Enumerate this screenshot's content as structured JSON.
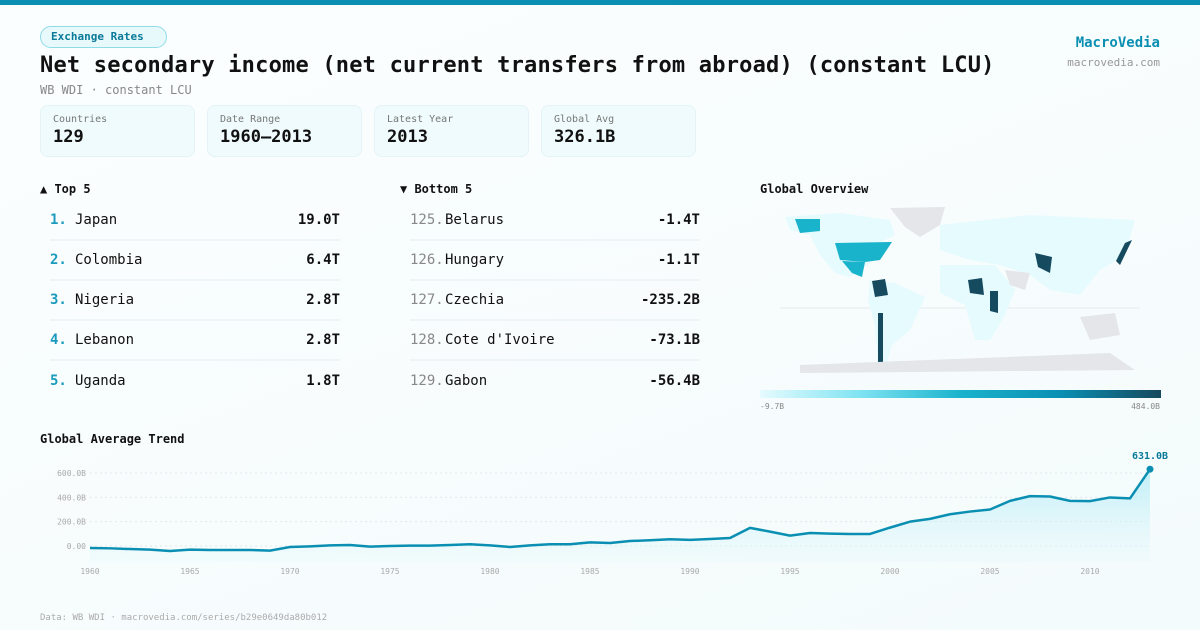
{
  "header": {
    "category": "Exchange Rates",
    "title": "Net secondary income (net current transfers from abroad) (constant LCU)",
    "subtitle": "WB WDI · constant LCU",
    "brand": "MacroVedia",
    "brand_url": "macrovedia.com"
  },
  "stats": [
    {
      "label": "Countries",
      "value": "129"
    },
    {
      "label": "Date Range",
      "value": "1960–2013"
    },
    {
      "label": "Latest Year",
      "value": "2013"
    },
    {
      "label": "Global Avg",
      "value": "326.1B"
    }
  ],
  "top5": {
    "title": "▲ Top 5",
    "items": [
      {
        "rank": "1.",
        "name": "Japan",
        "value": "19.0T"
      },
      {
        "rank": "2.",
        "name": "Colombia",
        "value": "6.4T"
      },
      {
        "rank": "3.",
        "name": "Nigeria",
        "value": "2.8T"
      },
      {
        "rank": "4.",
        "name": "Lebanon",
        "value": "2.8T"
      },
      {
        "rank": "5.",
        "name": "Uganda",
        "value": "1.8T"
      }
    ]
  },
  "bottom5": {
    "title": "▼ Bottom 5",
    "items": [
      {
        "rank": "125.",
        "name": "Belarus",
        "value": "-1.4T"
      },
      {
        "rank": "126.",
        "name": "Hungary",
        "value": "-1.1T"
      },
      {
        "rank": "127.",
        "name": "Czechia",
        "value": "-235.2B"
      },
      {
        "rank": "128.",
        "name": "Cote d'Ivoire",
        "value": "-73.1B"
      },
      {
        "rank": "129.",
        "name": "Gabon",
        "value": "-56.4B"
      }
    ]
  },
  "map": {
    "title": "Global Overview",
    "legend_min": "-9.7B",
    "legend_max": "484.0B",
    "colors": {
      "low": "#e6fbfe",
      "mid": "#1ab3cc",
      "high": "#164a5e",
      "nodata": "#e4e6ea"
    }
  },
  "chart_data": {
    "type": "area",
    "title": "Global Average Trend",
    "xlabel": "",
    "ylabel": "",
    "ylim": [
      -60,
      660
    ],
    "x": [
      1960,
      1961,
      1962,
      1963,
      1964,
      1965,
      1966,
      1967,
      1968,
      1969,
      1970,
      1971,
      1972,
      1973,
      1974,
      1975,
      1976,
      1977,
      1978,
      1979,
      1980,
      1981,
      1982,
      1983,
      1984,
      1985,
      1986,
      1987,
      1988,
      1989,
      1990,
      1991,
      1992,
      1993,
      1994,
      1995,
      1996,
      1997,
      1998,
      1999,
      2000,
      2001,
      2002,
      2003,
      2004,
      2005,
      2006,
      2007,
      2008,
      2009,
      2010,
      2011,
      2012,
      2013
    ],
    "values": [
      -16,
      -19,
      -25,
      -30,
      -41,
      -30,
      -33,
      -33,
      -33,
      -38,
      -8,
      -3,
      5,
      8,
      -5,
      0,
      3,
      3,
      8,
      14,
      5,
      -8,
      5,
      14,
      14,
      30,
      25,
      41,
      47,
      55,
      50,
      58,
      66,
      149,
      118,
      85,
      107,
      102,
      99,
      99,
      151,
      200,
      223,
      261,
      283,
      300,
      371,
      410,
      407,
      371,
      369,
      399,
      391,
      631
    ],
    "unit": "B",
    "yticks": [
      {
        "v": 0,
        "label": "0.00"
      },
      {
        "v": 200,
        "label": "200.0B"
      },
      {
        "v": 400,
        "label": "400.0B"
      },
      {
        "v": 600,
        "label": "600.0B"
      }
    ],
    "xticks": [
      "1960",
      "1965",
      "1970",
      "1975",
      "1980",
      "1985",
      "1990",
      "1995",
      "2000",
      "2005",
      "2010"
    ],
    "annotation": "631.0B",
    "grid": true,
    "color": "#0a8fb3"
  },
  "footer": "Data: WB WDI · macrovedia.com/series/b29e0649da80b012"
}
